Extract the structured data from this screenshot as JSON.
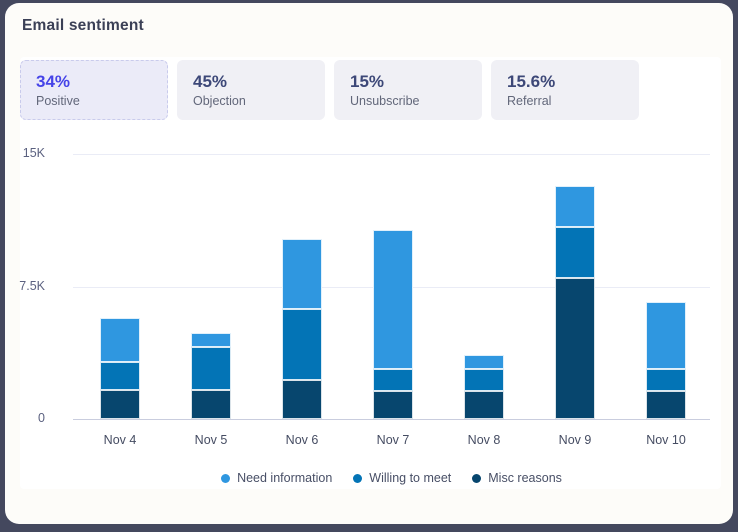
{
  "header": {
    "title": "Email sentiment"
  },
  "stats": [
    {
      "value": "34%",
      "label": "Positive",
      "selected": true
    },
    {
      "value": "45%",
      "label": "Objection",
      "selected": false
    },
    {
      "value": "15%",
      "label": "Unsubscribe",
      "selected": false
    },
    {
      "value": "15.6%",
      "label": "Referral",
      "selected": false
    }
  ],
  "colors": {
    "frame_background": "#44485e",
    "card_background": "#fdfcf9",
    "accent_selected": "#4644e8",
    "stat_value": "#3d4878",
    "need_information": "#2f97e0",
    "willing_to_meet": "#0374b6",
    "misc_reasons": "#07466e"
  },
  "chart_data": {
    "type": "bar",
    "stacked": true,
    "categories": [
      "Nov 4",
      "Nov 5",
      "Nov 6",
      "Nov 7",
      "Nov 8",
      "Nov 9",
      "Nov 10"
    ],
    "series": [
      {
        "name": "Need information",
        "color": "#2f97e0",
        "values": [
          2450,
          800,
          4000,
          7850,
          750,
          2350,
          3800
        ]
      },
      {
        "name": "Willing to meet",
        "color": "#0374b6",
        "values": [
          1600,
          2400,
          4000,
          1250,
          1250,
          2850,
          1250
        ]
      },
      {
        "name": "Misc reasons",
        "color": "#07466e",
        "values": [
          1650,
          1650,
          2200,
          1600,
          1600,
          8000,
          1600
        ]
      }
    ],
    "stack_order_bottom_to_top": [
      "Misc reasons",
      "Willing to meet",
      "Need information"
    ],
    "totals": [
      5700,
      4850,
      10200,
      10700,
      3600,
      13200,
      6650
    ],
    "ylim": [
      0,
      15000
    ],
    "yticks": [
      {
        "value": 15000,
        "label": "15K"
      },
      {
        "value": 7500,
        "label": "7.5K"
      },
      {
        "value": 0,
        "label": "0"
      }
    ],
    "grid": true,
    "legend": [
      "Need information",
      "Willing to meet",
      "Misc reasons"
    ],
    "legend_position": "bottom"
  }
}
